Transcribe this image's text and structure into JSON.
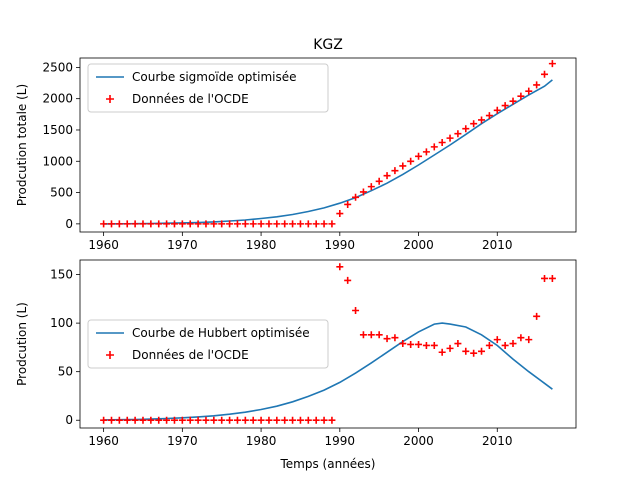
{
  "figure": {
    "title": "KGZ",
    "xlabel": "Temps (années)"
  },
  "chart_data": [
    {
      "type": "line+scatter",
      "ylabel": "Prodcution totale (L)",
      "xlim": [
        1957,
        2020
      ],
      "ylim": [
        -130,
        2650
      ],
      "xticks": [
        1960,
        1970,
        1980,
        1990,
        2000,
        2010
      ],
      "yticks": [
        0,
        500,
        1000,
        1500,
        2000,
        2500
      ],
      "legend": {
        "position": "upper-left",
        "line_label": "Courbe sigmoïde optimisée",
        "scatter_label": "Données de l'OCDE"
      },
      "line_color": "#1f77b4",
      "scatter_color": "#ff0000",
      "series": [
        {
          "name": "Courbe sigmoïde optimisée",
          "kind": "line",
          "x": [
            1960,
            1962,
            1964,
            1966,
            1968,
            1970,
            1972,
            1974,
            1976,
            1978,
            1980,
            1982,
            1984,
            1986,
            1988,
            1990,
            1992,
            1994,
            1996,
            1998,
            2000,
            2002,
            2004,
            2006,
            2008,
            2010,
            2012,
            2014,
            2016,
            2017
          ],
          "y": [
            0,
            1,
            3,
            6,
            10,
            15,
            22,
            32,
            45,
            62,
            85,
            113,
            150,
            197,
            255,
            330,
            420,
            530,
            650,
            790,
            940,
            1100,
            1260,
            1430,
            1600,
            1760,
            1910,
            2060,
            2200,
            2300
          ]
        },
        {
          "name": "Données de l'OCDE",
          "kind": "scatter",
          "x": [
            1960,
            1961,
            1962,
            1963,
            1964,
            1965,
            1966,
            1967,
            1968,
            1969,
            1970,
            1971,
            1972,
            1973,
            1974,
            1975,
            1976,
            1977,
            1978,
            1979,
            1980,
            1981,
            1982,
            1983,
            1984,
            1985,
            1986,
            1987,
            1988,
            1989,
            1990,
            1991,
            1992,
            1993,
            1994,
            1995,
            1996,
            1997,
            1998,
            1999,
            2000,
            2001,
            2002,
            2003,
            2004,
            2005,
            2006,
            2007,
            2008,
            2009,
            2010,
            2011,
            2012,
            2013,
            2014,
            2015,
            2016,
            2017
          ],
          "y": [
            0,
            0,
            0,
            0,
            0,
            0,
            0,
            0,
            0,
            0,
            0,
            0,
            0,
            0,
            0,
            0,
            0,
            0,
            0,
            0,
            0,
            0,
            0,
            0,
            0,
            0,
            0,
            0,
            0,
            0,
            165,
            310,
            425,
            510,
            595,
            680,
            770,
            850,
            925,
            1000,
            1080,
            1150,
            1230,
            1300,
            1370,
            1440,
            1520,
            1600,
            1660,
            1730,
            1815,
            1890,
            1960,
            2040,
            2120,
            2220,
            2390,
            2560
          ]
        }
      ]
    },
    {
      "type": "line+scatter",
      "ylabel": "Prodcution (L)",
      "xlim": [
        1957,
        2020
      ],
      "ylim": [
        -8,
        165
      ],
      "xticks": [
        1960,
        1970,
        1980,
        1990,
        2000,
        2010
      ],
      "yticks": [
        0,
        50,
        100,
        150
      ],
      "legend": {
        "position": "center-left",
        "line_label": "Courbe de Hubbert optimisée",
        "scatter_label": "Données de l'OCDE"
      },
      "line_color": "#1f77b4",
      "scatter_color": "#ff0000",
      "series": [
        {
          "name": "Courbe de Hubbert optimisée",
          "kind": "line",
          "x": [
            1960,
            1962,
            1964,
            1966,
            1968,
            1970,
            1972,
            1974,
            1976,
            1978,
            1980,
            1982,
            1984,
            1986,
            1988,
            1990,
            1992,
            1994,
            1996,
            1998,
            2000,
            2002,
            2003,
            2004,
            2006,
            2008,
            2010,
            2012,
            2014,
            2016,
            2017
          ],
          "y": [
            0.3,
            0.5,
            0.8,
            1.2,
            1.8,
            2.5,
            3.4,
            4.6,
            6.2,
            8.3,
            11,
            14.5,
            19,
            24.5,
            31,
            39,
            48.5,
            59,
            70,
            81,
            91,
            99,
            100,
            99,
            96,
            88,
            77,
            63,
            50,
            38,
            32
          ]
        },
        {
          "name": "Données de l'OCDE",
          "kind": "scatter",
          "x": [
            1960,
            1961,
            1962,
            1963,
            1964,
            1965,
            1966,
            1967,
            1968,
            1969,
            1970,
            1971,
            1972,
            1973,
            1974,
            1975,
            1976,
            1977,
            1978,
            1979,
            1980,
            1981,
            1982,
            1983,
            1984,
            1985,
            1986,
            1987,
            1988,
            1989,
            1990,
            1991,
            1992,
            1993,
            1994,
            1995,
            1996,
            1997,
            1998,
            1999,
            2000,
            2001,
            2002,
            2003,
            2004,
            2005,
            2006,
            2007,
            2008,
            2009,
            2010,
            2011,
            2012,
            2013,
            2014,
            2015,
            2016,
            2017
          ],
          "y": [
            0,
            0,
            0,
            0,
            0,
            0,
            0,
            0,
            0,
            0,
            0,
            0,
            0,
            0,
            0,
            0,
            0,
            0,
            0,
            0,
            0,
            0,
            0,
            0,
            0,
            0,
            0,
            0,
            0,
            0,
            158,
            144,
            113,
            88,
            88,
            88,
            84,
            85,
            79,
            78,
            78,
            77,
            77,
            70,
            74,
            79,
            71,
            69,
            71,
            77,
            83,
            77,
            79,
            85,
            83,
            107,
            146,
            146
          ]
        }
      ]
    }
  ]
}
